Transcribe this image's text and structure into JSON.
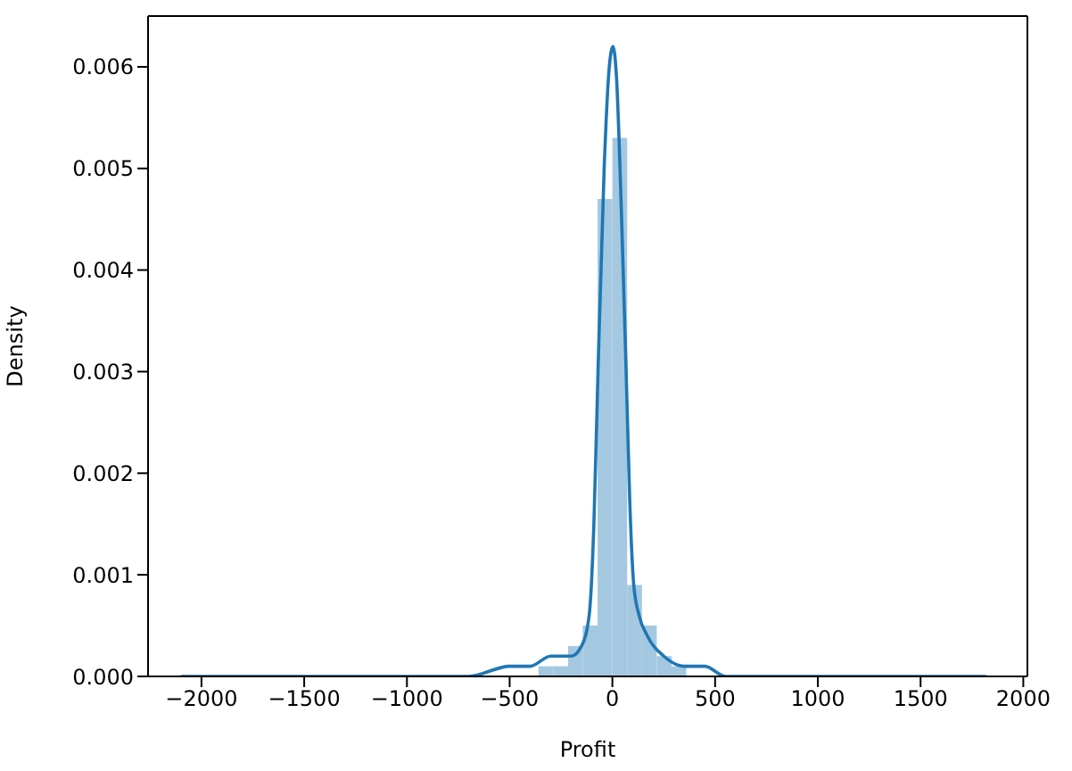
{
  "chart_data": {
    "type": "histogram",
    "xlabel": "Profit",
    "ylabel": "Density",
    "color": "#a5c8e1",
    "bins": [
      -2088,
      -2016,
      -1944,
      -1872,
      -1800,
      -1728,
      -1656,
      -1584,
      -1512,
      -1440,
      -1368,
      -1296,
      -1224,
      -1152,
      -1080,
      -1008,
      -936,
      -864,
      -792,
      -720,
      -648,
      -576,
      -504,
      -432,
      -360,
      -288,
      -216,
      -144,
      -72,
      0,
      72,
      144,
      216,
      288,
      360,
      432,
      504,
      576,
      648,
      720,
      792,
      864,
      936,
      1008,
      1080,
      1152,
      1224,
      1296,
      1368,
      1440,
      1512,
      1584,
      1656,
      1728,
      1800
    ],
    "values": [
      0,
      0,
      0,
      0,
      0,
      0,
      0,
      0,
      0,
      0,
      0,
      0,
      0,
      0,
      0,
      0,
      0,
      0,
      0,
      0,
      0,
      0,
      0,
      0,
      0.0001,
      0.0001,
      0.0003,
      0.0005,
      0.0047,
      0.0053,
      0.0009,
      0.0005,
      0.0002,
      0.0001,
      0,
      0,
      0,
      0,
      0,
      0,
      0,
      0,
      0,
      0,
      0,
      0,
      0,
      0,
      0,
      0,
      0,
      0,
      0,
      0
    ],
    "series": [
      {
        "type": "line",
        "color": "#1f77b4",
        "x": [
          -2100,
          -1500,
          -1000,
          -700,
          -500,
          -400,
          -300,
          -200,
          -150,
          -113,
          -90,
          -70,
          -40,
          -15,
          3,
          20,
          45,
          67,
          85,
          104,
          130,
          170,
          250,
          350,
          450,
          550,
          700,
          800,
          1000,
          1500,
          1820
        ],
        "values": [
          0,
          0,
          0,
          0,
          0.0001,
          0.0001,
          0.0002,
          0.0002,
          0.0003,
          0.0006,
          0.0015,
          0.003,
          0.005,
          0.006,
          0.0062,
          0.0059,
          0.0045,
          0.003,
          0.0017,
          0.0009,
          0.0006,
          0.0004,
          0.0002,
          0.0001,
          0.0001,
          0,
          0,
          0,
          0,
          0,
          0
        ]
      }
    ],
    "xlim": [
      -2260,
      2020
    ],
    "xticks": [
      -2000,
      -1500,
      -1000,
      -500,
      0,
      500,
      1000,
      1500,
      2000
    ],
    "ylim": [
      0,
      0.0065
    ],
    "yticks": [
      {
        "value": 0,
        "label": "0.000"
      },
      {
        "value": 0.001,
        "label": "0.001"
      },
      {
        "value": 0.002,
        "label": "0.002"
      },
      {
        "value": 0.003,
        "label": "0.003"
      },
      {
        "value": 0.004,
        "label": "0.004"
      },
      {
        "value": 0.005,
        "label": "0.005"
      },
      {
        "value": 0.006,
        "label": "0.006"
      }
    ],
    "grid": false,
    "marker": "none",
    "line_style": "solid"
  }
}
